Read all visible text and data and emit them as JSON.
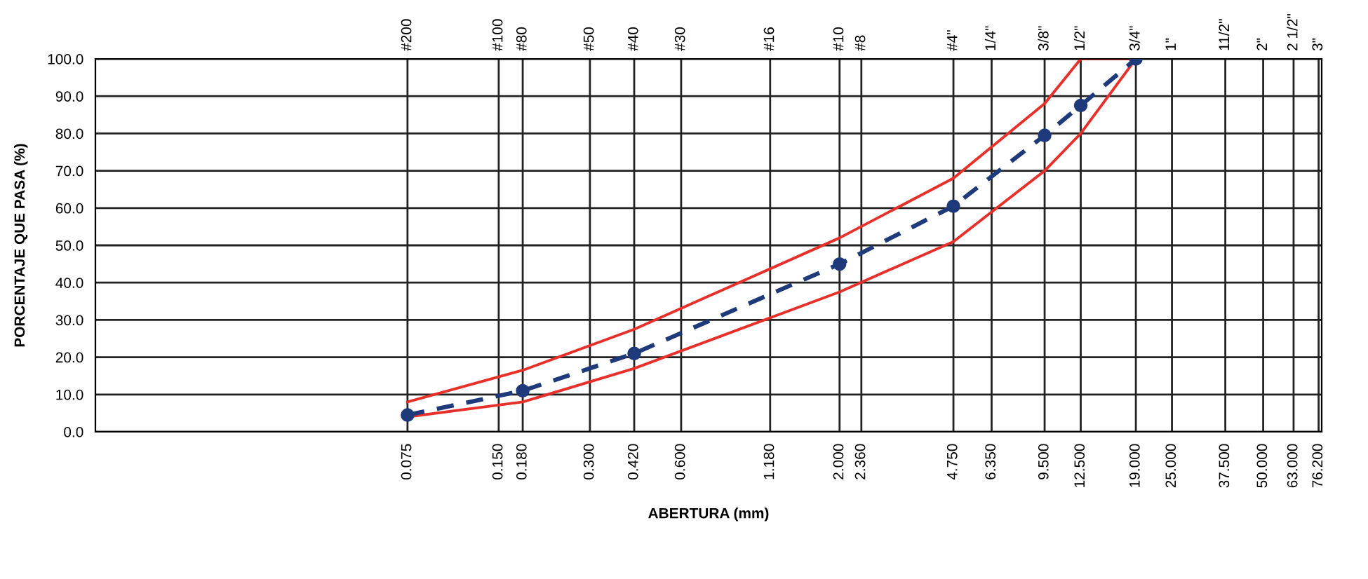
{
  "chart_data": {
    "type": "line",
    "xlabel": "ABERTURA (mm)",
    "ylabel": "PORCENTAJE QUE PASA (%)",
    "log": "x",
    "xlim": [
      0.007,
      78
    ],
    "ylim": [
      0,
      100
    ],
    "xticks": [
      {
        "value": 0.075,
        "label": "0.075"
      },
      {
        "value": 0.15,
        "label": "0.150"
      },
      {
        "value": 0.18,
        "label": "0.180"
      },
      {
        "value": 0.3,
        "label": "0.300"
      },
      {
        "value": 0.42,
        "label": "0.420"
      },
      {
        "value": 0.6,
        "label": "0.600"
      },
      {
        "value": 1.18,
        "label": "1.180"
      },
      {
        "value": 2.0,
        "label": "2.000"
      },
      {
        "value": 2.36,
        "label": "2.360"
      },
      {
        "value": 4.75,
        "label": "4.750"
      },
      {
        "value": 6.35,
        "label": "6.350"
      },
      {
        "value": 9.5,
        "label": "9.500"
      },
      {
        "value": 12.5,
        "label": "12.500"
      },
      {
        "value": 19,
        "label": "19.000"
      },
      {
        "value": 25,
        "label": "25.000"
      },
      {
        "value": 37.5,
        "label": "37.500"
      },
      {
        "value": 50,
        "label": "50.000"
      },
      {
        "value": 63,
        "label": "63.000"
      },
      {
        "value": 76.2,
        "label": "76.200"
      }
    ],
    "annotations": [
      "#200",
      "#100",
      "#80",
      "#50",
      "#40",
      "#30",
      "#16",
      "#10",
      "#8",
      "#4\"",
      "1/4\"",
      "3/8\"",
      "1/2\"",
      "3/4\"",
      "1\"",
      "11/2\"",
      "2\"",
      "2 1/2\"",
      "3\""
    ],
    "yticks": [
      {
        "value": 0,
        "label": "0.0"
      },
      {
        "value": 10,
        "label": "10.0"
      },
      {
        "value": 20,
        "label": "20.0"
      },
      {
        "value": 30,
        "label": "30.0"
      },
      {
        "value": 40,
        "label": "40.0"
      },
      {
        "value": 50,
        "label": "50.0"
      },
      {
        "value": 60,
        "label": "60.0"
      },
      {
        "value": 70,
        "label": "70.0"
      },
      {
        "value": 80,
        "label": "80.0"
      },
      {
        "value": 90,
        "label": "90.0"
      },
      {
        "value": 100,
        "label": "100.0"
      }
    ],
    "grid": true,
    "legend": false,
    "series": [
      {
        "color": "#e8302a",
        "marker": "none",
        "line_style": "solid",
        "x": [
          0.075,
          0.18,
          0.42,
          2.0,
          4.75,
          9.5,
          12.5,
          19
        ],
        "values": [
          8,
          16.5,
          27.5,
          52,
          68,
          88,
          100,
          100
        ]
      },
      {
        "color": "#e8302a",
        "marker": "none",
        "line_style": "solid",
        "x": [
          0.075,
          0.18,
          0.42,
          2.0,
          4.75,
          9.5,
          12.5,
          19
        ],
        "values": [
          4,
          8,
          17,
          37.5,
          51,
          70,
          80,
          100
        ]
      },
      {
        "color": "#1f3a7a",
        "marker": "circle",
        "line_style": "dashed",
        "x": [
          0.075,
          0.18,
          0.42,
          2.0,
          4.75,
          9.5,
          12.5,
          19
        ],
        "values": [
          4.5,
          11,
          21,
          45,
          60.5,
          79.5,
          87.5,
          100
        ]
      }
    ]
  }
}
